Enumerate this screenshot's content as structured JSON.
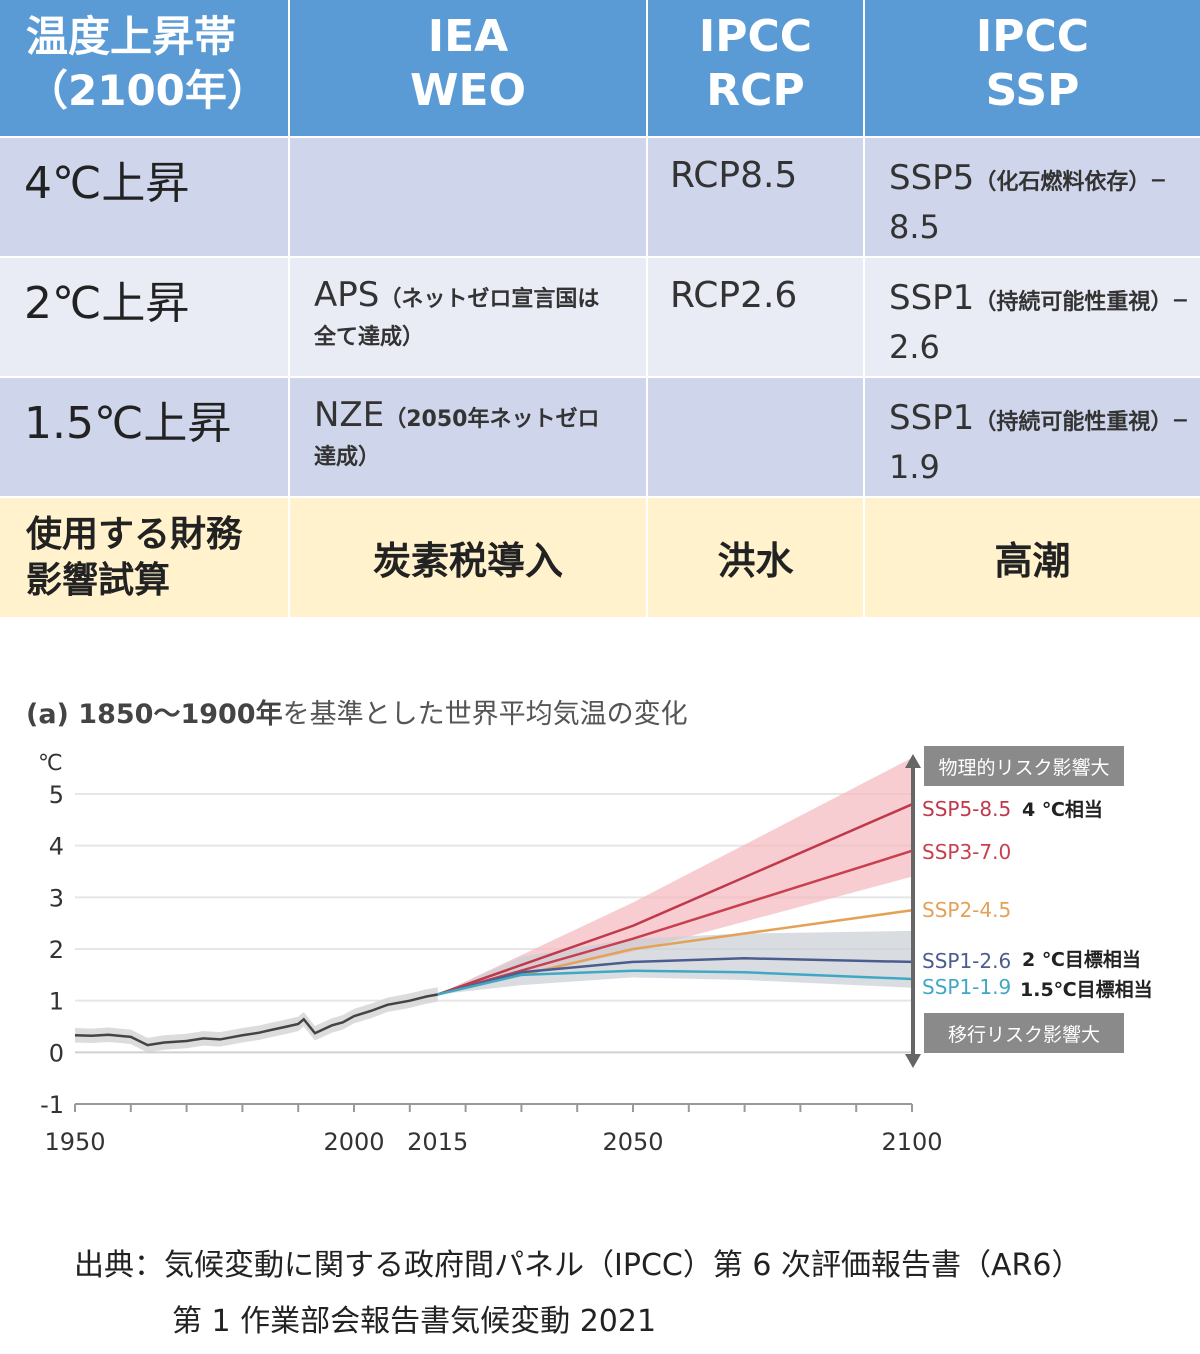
{
  "table": {
    "headers": [
      "温度上昇帯\n（2100年）",
      "IEA\nWEO",
      "IPCC\nRCP",
      "IPCC\nSSP"
    ],
    "rows": [
      {
        "band": "4℃上昇",
        "iea_lead": "",
        "iea_detail": "",
        "rcp": "RCP8.5",
        "ssp_lead": "SSP5",
        "ssp_detail": "（化石燃料依存）",
        "ssp_tail": "–8.5"
      },
      {
        "band": "2℃上昇",
        "iea_lead": "APS",
        "iea_detail": "（ネットゼロ宣言国は全て達成）",
        "rcp": "RCP2.6",
        "ssp_lead": "SSP1",
        "ssp_detail": "（持続可能性重視）",
        "ssp_tail": "–2.6"
      },
      {
        "band": "1.5℃上昇",
        "iea_lead": "NZE",
        "iea_detail": "（2050年ネットゼロ達成）",
        "rcp": "",
        "ssp_lead": "SSP1",
        "ssp_detail": "（持続可能性重視）",
        "ssp_tail": "–1.9"
      }
    ],
    "footer": [
      "使用する財務\n影響試算",
      "炭素税導入",
      "洪水",
      "高潮"
    ]
  },
  "chart_title_prefix": "(a) 1850～1900年",
  "chart_title_rest": "を基準とした世界平均気温の変化",
  "chart_data": {
    "type": "line",
    "ylabel": "℃",
    "ylim": [
      -1,
      5
    ],
    "xlim": [
      1950,
      2100
    ],
    "yticks": [
      5,
      4,
      3,
      2,
      1,
      0,
      -1
    ],
    "xticks": [
      1950,
      2000,
      2015,
      2050,
      2100
    ],
    "grid": true,
    "historical": {
      "x": [
        1950,
        1953,
        1956,
        1960,
        1963,
        1966,
        1970,
        1973,
        1976,
        1980,
        1983,
        1985,
        1988,
        1990,
        1991,
        1993,
        1996,
        1998,
        2000,
        2003,
        2006,
        2010,
        2013,
        2015
      ],
      "y": [
        0.33,
        0.32,
        0.34,
        0.3,
        0.14,
        0.19,
        0.22,
        0.27,
        0.25,
        0.33,
        0.38,
        0.43,
        0.5,
        0.55,
        0.64,
        0.37,
        0.52,
        0.58,
        0.7,
        0.8,
        0.92,
        1.0,
        1.08,
        1.12
      ]
    },
    "series": [
      {
        "name": "SSP5-8.5",
        "color": "#c0394b",
        "x": [
          2015,
          2050,
          2100
        ],
        "y": [
          1.12,
          2.45,
          4.8
        ],
        "band_low": [
          1.12,
          1.95,
          3.4
        ],
        "band_high": [
          1.12,
          2.9,
          5.7
        ]
      },
      {
        "name": "SSP3-7.0",
        "color": "#c8404f",
        "x": [
          2015,
          2050,
          2100
        ],
        "y": [
          1.12,
          2.2,
          3.9
        ]
      },
      {
        "name": "SSP2-4.5",
        "color": "#e3a258",
        "x": [
          2015,
          2050,
          2100
        ],
        "y": [
          1.12,
          2.0,
          2.75
        ]
      },
      {
        "name": "SSP1-2.6",
        "color": "#4b5d8e",
        "x": [
          2015,
          2030,
          2050,
          2070,
          2100
        ],
        "y": [
          1.12,
          1.55,
          1.75,
          1.82,
          1.75
        ],
        "band_low": [
          1.12,
          1.3,
          1.45,
          1.4,
          1.25
        ],
        "band_high": [
          1.12,
          1.85,
          2.2,
          2.3,
          2.35
        ]
      },
      {
        "name": "SSP1-1.9",
        "color": "#3fa8c4",
        "x": [
          2015,
          2030,
          2050,
          2070,
          2100
        ],
        "y": [
          1.12,
          1.5,
          1.58,
          1.55,
          1.42
        ]
      }
    ],
    "annotations": {
      "physical_risk": "物理的リスク影響大",
      "transition_risk": "移行リスク影響大",
      "eq4": "4 ℃相当",
      "eq2": "2 ℃目標相当",
      "eq15": "1.5℃目標相当"
    },
    "colors": {
      "hist_band": "#d3d3d3",
      "ssp5_band": "#f4b8be",
      "ssp1_band": "#c9cfd6",
      "arrow": "#666666",
      "label_box": "#8a8a8a"
    }
  },
  "source": {
    "line1": "出典：気候変動に関する政府間パネル（IPCC）第 6 次評価報告書（AR6）",
    "line2": "第 1 作業部会報告書気候変動 2021"
  }
}
